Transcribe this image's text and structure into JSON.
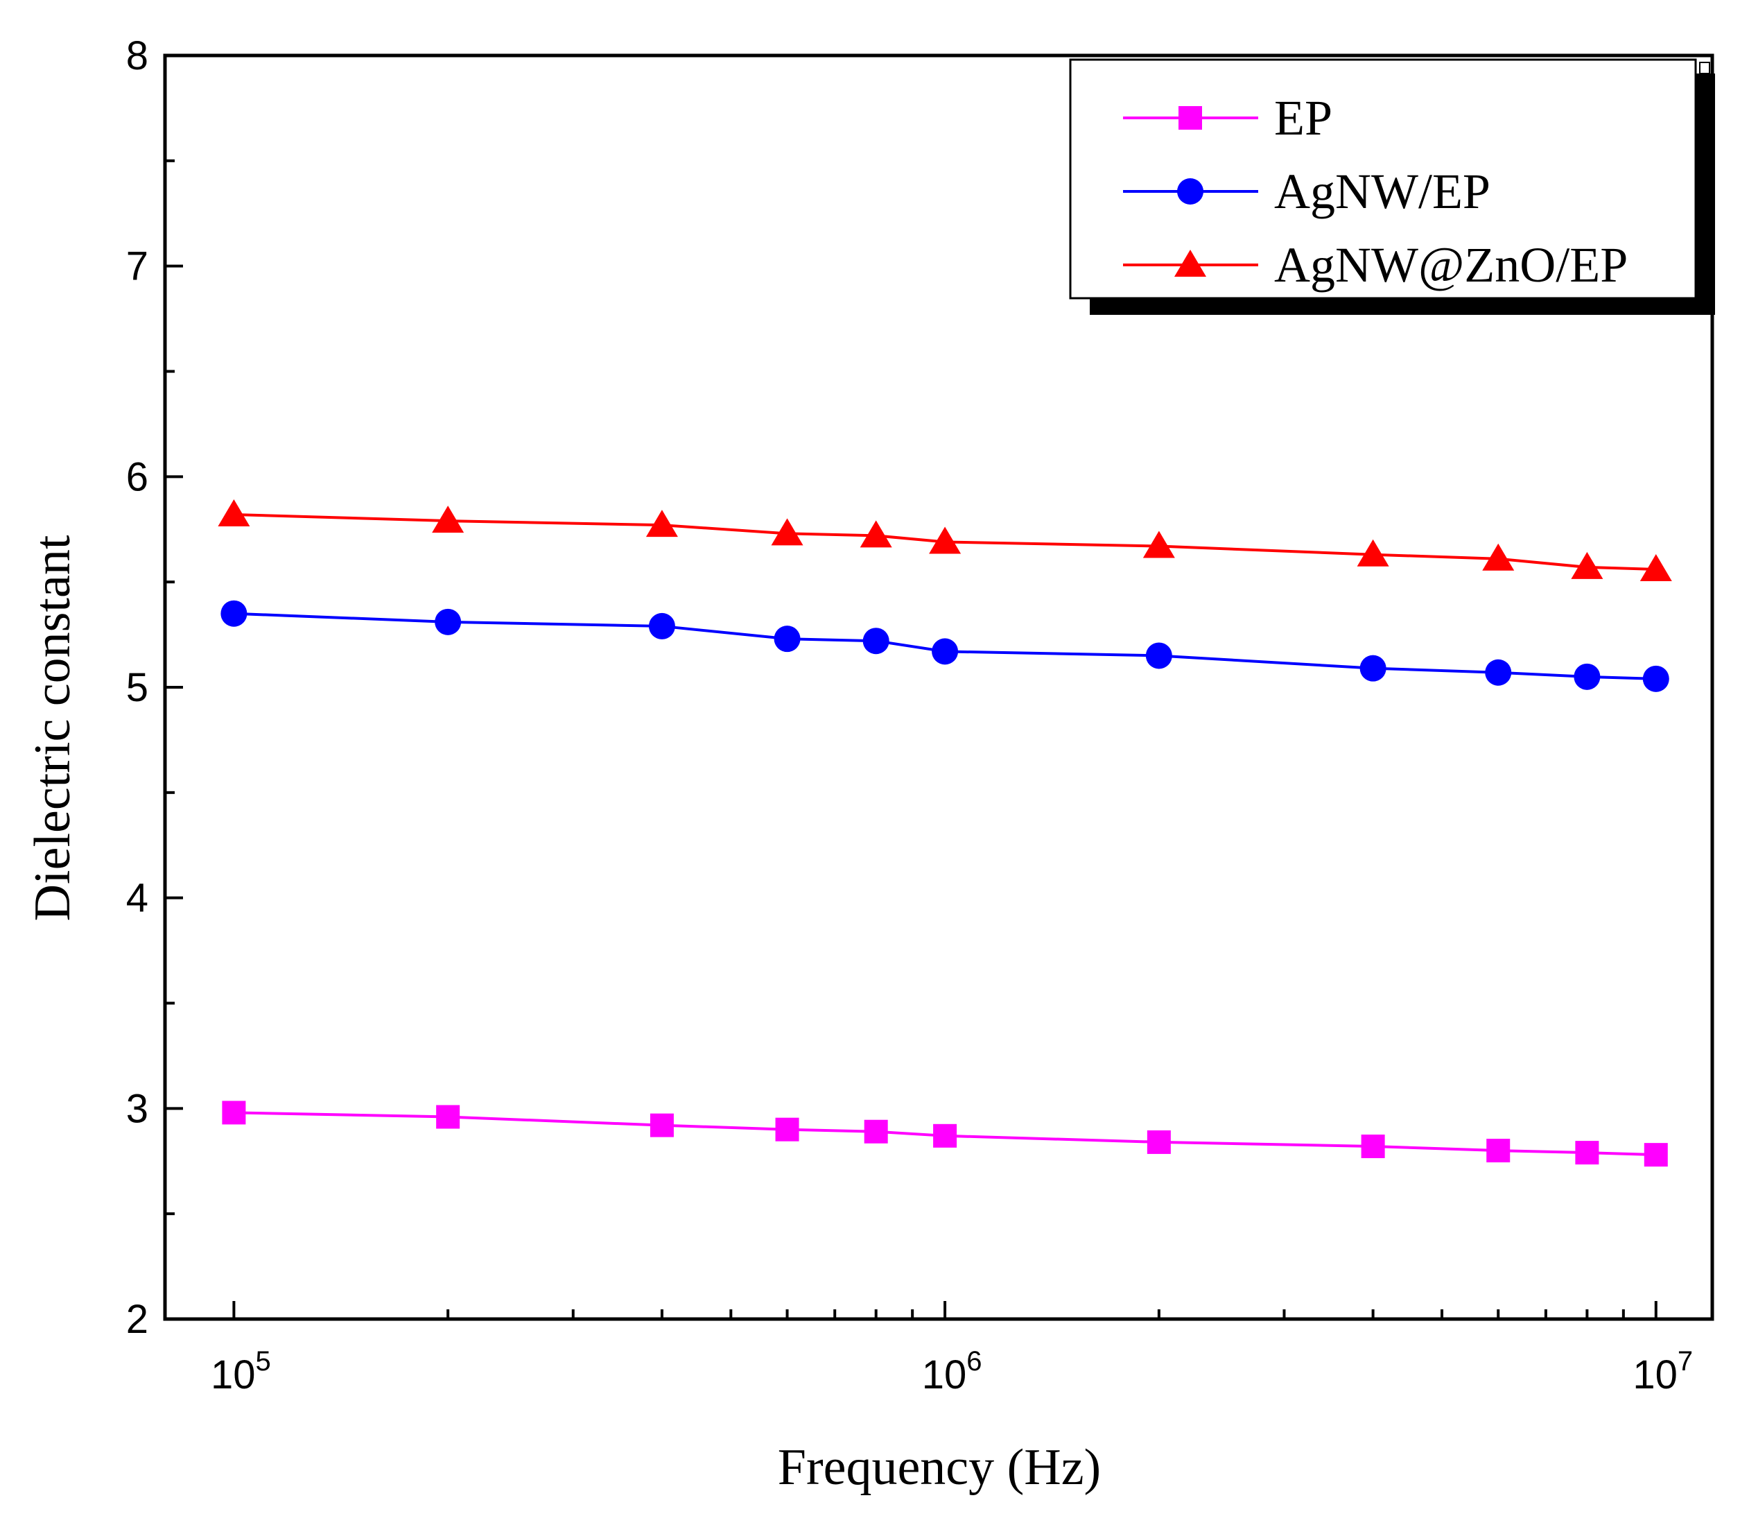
{
  "chart_data": {
    "type": "line",
    "title": "",
    "xlabel": "Frequency (Hz)",
    "ylabel": "Dielectric constant",
    "xscale": "log",
    "xlim": [
      80000,
      12000000
    ],
    "ylim": [
      2,
      8
    ],
    "x_ticks": [
      {
        "base": "10",
        "exp": "5",
        "value": 100000
      },
      {
        "base": "10",
        "exp": "6",
        "value": 1000000
      },
      {
        "base": "10",
        "exp": "7",
        "value": 10000000
      }
    ],
    "y_ticks": [
      "2",
      "3",
      "4",
      "5",
      "6",
      "7",
      "8"
    ],
    "x": [
      100000,
      200000,
      400000,
      600000,
      800000,
      1000000,
      2000000,
      4000000,
      6000000,
      8000000,
      10000000
    ],
    "series": [
      {
        "name": "EP",
        "marker": "square",
        "color": "#ff00ff",
        "values": [
          2.98,
          2.96,
          2.92,
          2.9,
          2.89,
          2.87,
          2.84,
          2.82,
          2.8,
          2.79,
          2.78
        ]
      },
      {
        "name": "AgNW/EP",
        "marker": "circle",
        "color": "#0000ff",
        "values": [
          5.35,
          5.31,
          5.29,
          5.23,
          5.22,
          5.17,
          5.15,
          5.09,
          5.07,
          5.05,
          5.04
        ]
      },
      {
        "name": "AgNW@ZnO/EP",
        "marker": "triangle",
        "color": "#ff0000",
        "values": [
          5.82,
          5.79,
          5.77,
          5.73,
          5.72,
          5.69,
          5.67,
          5.63,
          5.61,
          5.57,
          5.56
        ]
      }
    ],
    "legend": {
      "position": "top-right"
    },
    "grid": false
  }
}
